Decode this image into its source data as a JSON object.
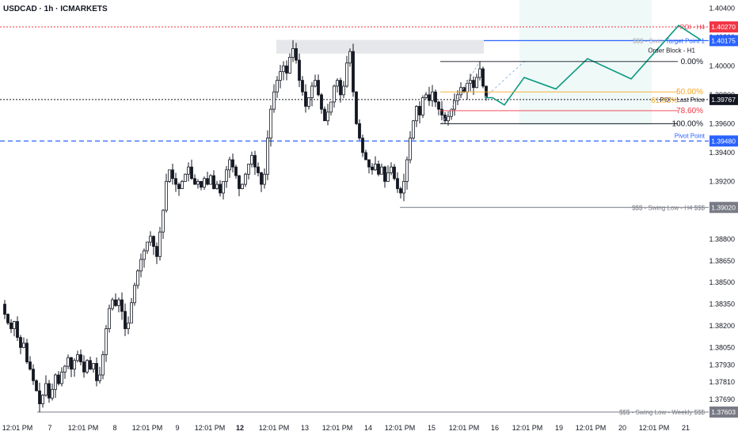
{
  "header": {
    "title": "USDCAD · 1h · ICMARKETS"
  },
  "colors": {
    "bull": "#ffffff",
    "bear": "#131722",
    "wick": "#131722",
    "poi_red": "#f23645",
    "blue": "#2962ff",
    "gray": "#787b86",
    "fib_orange": "#f5a623",
    "fib_pink": "#f23645",
    "teal": "#089981",
    "target_zone": "#e8f6f3",
    "ob_zone": "#e6e7ea"
  },
  "chart_data": {
    "type": "candlestick",
    "symbol": "USDCAD",
    "timeframe": "1h",
    "exchange": "ICMARKETS",
    "ylim": [
      1.3757,
      1.4044
    ],
    "y_ticks": [
      "1.40400",
      "1.40200",
      "1.40000",
      "1.39800",
      "1.39600",
      "1.39400",
      "1.39200",
      "1.39000",
      "1.38800",
      "1.38650",
      "1.38500",
      "1.38350",
      "1.38200",
      "1.38050",
      "1.37930",
      "1.37810",
      "1.37690"
    ],
    "x_ticks": [
      "12:01 PM",
      "7",
      "12:01 PM",
      "8",
      "12:01 PM",
      "9",
      "12:01 PM",
      "12",
      "12:01 PM",
      "13",
      "12:01 PM",
      "14",
      "12:01 PM",
      "15",
      "12:01 PM",
      "16",
      "12:01 PM",
      "19",
      "12:01 PM",
      "20",
      "12:01 PM",
      "21"
    ],
    "bold_x_ticks": [
      "12"
    ],
    "price_path": [
      [
        0,
        1.3835
      ],
      [
        4,
        1.3828
      ],
      [
        8,
        1.3822
      ],
      [
        12,
        1.3818
      ],
      [
        16,
        1.3823
      ],
      [
        20,
        1.3812
      ],
      [
        24,
        1.3805
      ],
      [
        28,
        1.3808
      ],
      [
        32,
        1.3795
      ],
      [
        36,
        1.379
      ],
      [
        40,
        1.3782
      ],
      [
        44,
        1.3775
      ],
      [
        48,
        1.3766
      ],
      [
        52,
        1.3772
      ],
      [
        56,
        1.378
      ],
      [
        60,
        1.377
      ],
      [
        64,
        1.3776
      ],
      [
        68,
        1.3786
      ],
      [
        72,
        1.378
      ],
      [
        76,
        1.3788
      ],
      [
        80,
        1.3792
      ],
      [
        84,
        1.3798
      ],
      [
        88,
        1.379
      ],
      [
        92,
        1.3796
      ],
      [
        96,
        1.38
      ],
      [
        100,
        1.3795
      ],
      [
        104,
        1.3788
      ],
      [
        108,
        1.3796
      ],
      [
        112,
        1.379
      ],
      [
        116,
        1.3794
      ],
      [
        120,
        1.3782
      ],
      [
        124,
        1.3786
      ],
      [
        128,
        1.38
      ],
      [
        132,
        1.3818
      ],
      [
        136,
        1.3832
      ],
      [
        140,
        1.3838
      ],
      [
        144,
        1.3834
      ],
      [
        148,
        1.3838
      ],
      [
        152,
        1.383
      ],
      [
        156,
        1.3818
      ],
      [
        160,
        1.3822
      ],
      [
        164,
        1.3836
      ],
      [
        168,
        1.3848
      ],
      [
        172,
        1.3858
      ],
      [
        176,
        1.3866
      ],
      [
        180,
        1.3872
      ],
      [
        184,
        1.3878
      ],
      [
        188,
        1.3882
      ],
      [
        192,
        1.3875
      ],
      [
        196,
        1.3868
      ],
      [
        200,
        1.3885
      ],
      [
        204,
        1.39
      ],
      [
        208,
        1.392
      ],
      [
        212,
        1.3928
      ],
      [
        216,
        1.3922
      ],
      [
        220,
        1.3918
      ],
      [
        224,
        1.3915
      ],
      [
        228,
        1.392
      ],
      [
        232,
        1.3925
      ],
      [
        236,
        1.393
      ],
      [
        240,
        1.3922
      ],
      [
        244,
        1.3918
      ],
      [
        248,
        1.392
      ],
      [
        252,
        1.3916
      ],
      [
        256,
        1.3922
      ],
      [
        260,
        1.3918
      ],
      [
        264,
        1.3924
      ],
      [
        268,
        1.3915
      ],
      [
        272,
        1.3918
      ],
      [
        276,
        1.3912
      ],
      [
        280,
        1.392
      ],
      [
        284,
        1.3928
      ],
      [
        288,
        1.3935
      ],
      [
        292,
        1.393
      ],
      [
        296,
        1.3924
      ],
      [
        300,
        1.3915
      ],
      [
        304,
        1.3918
      ],
      [
        308,
        1.3925
      ],
      [
        312,
        1.3932
      ],
      [
        316,
        1.3938
      ],
      [
        320,
        1.393
      ],
      [
        324,
        1.3926
      ],
      [
        328,
        1.3918
      ],
      [
        332,
        1.3925
      ],
      [
        336,
        1.395
      ],
      [
        340,
        1.397
      ],
      [
        344,
        1.3982
      ],
      [
        348,
        1.399
      ],
      [
        352,
        1.3996
      ],
      [
        356,
        1.4
      ],
      [
        360,
        1.3995
      ],
      [
        364,
        1.4006
      ],
      [
        368,
        1.4012
      ],
      [
        372,
        1.4004
      ],
      [
        376,
        1.399
      ],
      [
        380,
        1.3982
      ],
      [
        384,
        1.3972
      ],
      [
        388,
        1.3978
      ],
      [
        392,
        1.3986
      ],
      [
        396,
        1.399
      ],
      [
        400,
        1.398
      ],
      [
        404,
        1.397
      ],
      [
        408,
        1.3962
      ],
      [
        412,
        1.3968
      ],
      [
        416,
        1.3975
      ],
      [
        420,
        1.3986
      ],
      [
        424,
        1.399
      ],
      [
        428,
        1.398
      ],
      [
        432,
        1.3986
      ],
      [
        436,
        1.4002
      ],
      [
        440,
        1.401
      ],
      [
        444,
        1.3982
      ],
      [
        448,
        1.396
      ],
      [
        452,
        1.395
      ],
      [
        456,
        1.394
      ],
      [
        460,
        1.3935
      ],
      [
        464,
        1.393
      ],
      [
        468,
        1.3928
      ],
      [
        472,
        1.3932
      ],
      [
        476,
        1.3925
      ],
      [
        480,
        1.393
      ],
      [
        484,
        1.392
      ],
      [
        488,
        1.3926
      ],
      [
        492,
        1.393
      ],
      [
        496,
        1.3922
      ],
      [
        500,
        1.3915
      ],
      [
        504,
        1.3912
      ],
      [
        508,
        1.392
      ],
      [
        512,
        1.3935
      ],
      [
        516,
        1.395
      ],
      [
        520,
        1.3962
      ],
      [
        524,
        1.3972
      ],
      [
        528,
        1.3966
      ],
      [
        532,
        1.3978
      ],
      [
        536,
        1.398
      ],
      [
        540,
        1.3976
      ],
      [
        544,
        1.3982
      ],
      [
        548,
        1.3975
      ],
      [
        552,
        1.397
      ],
      [
        556,
        1.3966
      ],
      [
        560,
        1.3962
      ],
      [
        564,
        1.3965
      ],
      [
        568,
        1.397
      ],
      [
        572,
        1.3976
      ],
      [
        576,
        1.398
      ],
      [
        580,
        1.3985
      ],
      [
        584,
        1.3982
      ],
      [
        588,
        1.3988
      ],
      [
        592,
        1.399
      ],
      [
        596,
        1.3985
      ],
      [
        600,
        1.3992
      ],
      [
        604,
        1.3998
      ],
      [
        608,
        1.3986
      ],
      [
        612,
        1.3978
      ]
    ],
    "projection": [
      [
        612,
        1.3978
      ],
      [
        622,
        1.3978
      ],
      [
        637,
        1.3973
      ],
      [
        662,
        1.3992
      ],
      [
        702,
        1.3984
      ],
      [
        742,
        1.4005
      ],
      [
        797,
        1.3991
      ],
      [
        857,
        1.4028
      ],
      [
        885,
        1.4018
      ]
    ],
    "levels": [
      {
        "name": "poi-h4",
        "label": "POI - H4",
        "price": 1.4027,
        "badge": "1.40270",
        "style": "dotted",
        "color": "#f23645",
        "full": true
      },
      {
        "name": "target-point",
        "label": "Target Point 1",
        "price": 1.40175,
        "badge": "1.40175",
        "style": "solid",
        "color": "#2962ff",
        "x0": 611,
        "full": false
      },
      {
        "name": "last-price",
        "label": "POI - Last Price",
        "price": 1.39767,
        "badge": "1.39767",
        "style": "dotted",
        "color": "#131722",
        "full": true
      },
      {
        "name": "pivot-point",
        "label": "Pivot Point",
        "price": 1.3948,
        "badge": "1.39480",
        "style": "dashed",
        "color": "#2962ff",
        "full": true
      },
      {
        "name": "swing-low-h4",
        "label": "$$$ - Swing Low - H4 $$$",
        "price": 1.3902,
        "badge": "1.39020",
        "style": "solid",
        "color": "#787b86",
        "x0": 505,
        "full": false
      },
      {
        "name": "swing-low-weekly",
        "label": "$$$ - Swing Low - Weekly $$$",
        "price": 1.37603,
        "badge": "1.37603",
        "style": "solid",
        "color": "#787b86",
        "x0": 47,
        "full": false
      }
    ],
    "fib_levels": [
      {
        "label": "0.00%",
        "price": 1.4003,
        "color": "#131722"
      },
      {
        "label": "50.00%",
        "price": 1.3982,
        "color": "#f5a623"
      },
      {
        "label": "78.60%",
        "price": 1.3969,
        "color": "#f23645"
      },
      {
        "label": "100.00%",
        "price": 1.396,
        "color": "#131722"
      }
    ],
    "annotations": {
      "order_block": "Order Block - H1",
      "swing_high_partial": "$$$ - Swin",
      "fib_overlap": "61.80%"
    }
  }
}
